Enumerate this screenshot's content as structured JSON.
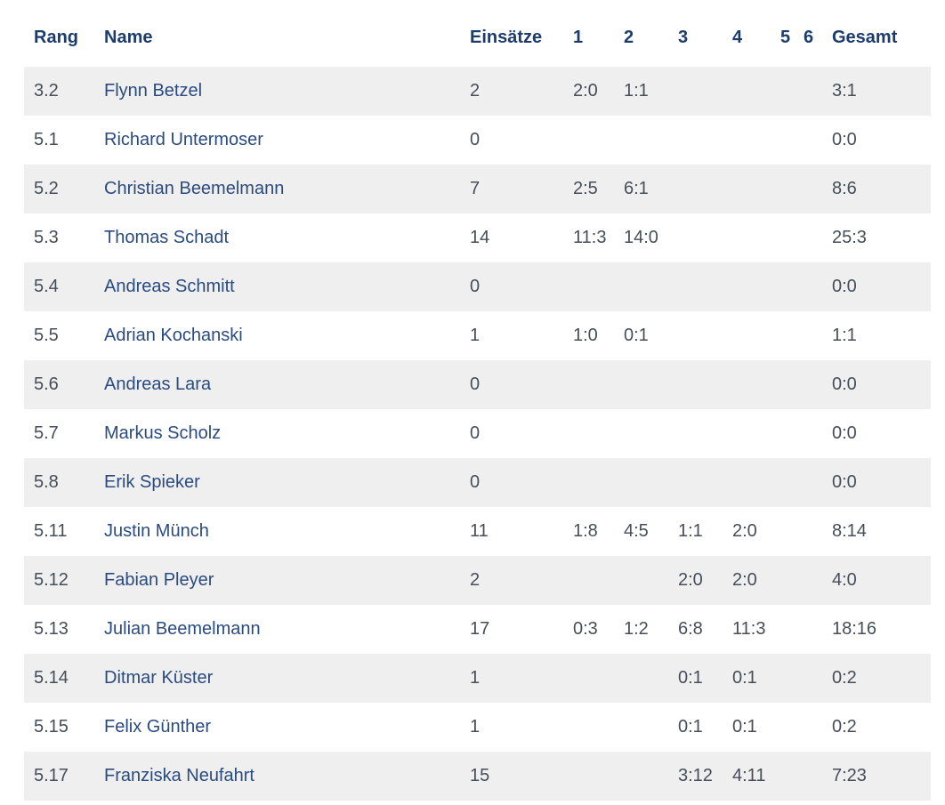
{
  "table": {
    "headers": [
      "Rang",
      "Name",
      "Einsätze",
      "1",
      "2",
      "3",
      "4",
      "5",
      "6",
      "Gesamt"
    ],
    "rows": [
      {
        "rang": "3.2",
        "name": "Flynn Betzel",
        "einsaetze": "2",
        "r1": "2:0",
        "r2": "1:1",
        "r3": "",
        "r4": "",
        "r5": "",
        "r6": "",
        "gesamt": "3:1"
      },
      {
        "rang": "5.1",
        "name": "Richard Untermoser",
        "einsaetze": "0",
        "r1": "",
        "r2": "",
        "r3": "",
        "r4": "",
        "r5": "",
        "r6": "",
        "gesamt": "0:0"
      },
      {
        "rang": "5.2",
        "name": "Christian Beemelmann",
        "einsaetze": "7",
        "r1": "2:5",
        "r2": "6:1",
        "r3": "",
        "r4": "",
        "r5": "",
        "r6": "",
        "gesamt": "8:6"
      },
      {
        "rang": "5.3",
        "name": "Thomas Schadt",
        "einsaetze": "14",
        "r1": "11:3",
        "r2": "14:0",
        "r3": "",
        "r4": "",
        "r5": "",
        "r6": "",
        "gesamt": "25:3"
      },
      {
        "rang": "5.4",
        "name": "Andreas Schmitt",
        "einsaetze": "0",
        "r1": "",
        "r2": "",
        "r3": "",
        "r4": "",
        "r5": "",
        "r6": "",
        "gesamt": "0:0"
      },
      {
        "rang": "5.5",
        "name": "Adrian Kochanski",
        "einsaetze": "1",
        "r1": "1:0",
        "r2": "0:1",
        "r3": "",
        "r4": "",
        "r5": "",
        "r6": "",
        "gesamt": "1:1"
      },
      {
        "rang": "5.6",
        "name": "Andreas Lara",
        "einsaetze": "0",
        "r1": "",
        "r2": "",
        "r3": "",
        "r4": "",
        "r5": "",
        "r6": "",
        "gesamt": "0:0"
      },
      {
        "rang": "5.7",
        "name": "Markus Scholz",
        "einsaetze": "0",
        "r1": "",
        "r2": "",
        "r3": "",
        "r4": "",
        "r5": "",
        "r6": "",
        "gesamt": "0:0"
      },
      {
        "rang": "5.8",
        "name": "Erik Spieker",
        "einsaetze": "0",
        "r1": "",
        "r2": "",
        "r3": "",
        "r4": "",
        "r5": "",
        "r6": "",
        "gesamt": "0:0"
      },
      {
        "rang": "5.11",
        "name": "Justin Münch",
        "einsaetze": "11",
        "r1": "1:8",
        "r2": "4:5",
        "r3": "1:1",
        "r4": "2:0",
        "r5": "",
        "r6": "",
        "gesamt": "8:14"
      },
      {
        "rang": "5.12",
        "name": "Fabian Pleyer",
        "einsaetze": "2",
        "r1": "",
        "r2": "",
        "r3": "2:0",
        "r4": "2:0",
        "r5": "",
        "r6": "",
        "gesamt": "4:0"
      },
      {
        "rang": "5.13",
        "name": "Julian Beemelmann",
        "einsaetze": "17",
        "r1": "0:3",
        "r2": "1:2",
        "r3": "6:8",
        "r4": "11:3",
        "r5": "",
        "r6": "",
        "gesamt": "18:16"
      },
      {
        "rang": "5.14",
        "name": "Ditmar Küster",
        "einsaetze": "1",
        "r1": "",
        "r2": "",
        "r3": "0:1",
        "r4": "0:1",
        "r5": "",
        "r6": "",
        "gesamt": "0:2"
      },
      {
        "rang": "5.15",
        "name": "Felix Günther",
        "einsaetze": "1",
        "r1": "",
        "r2": "",
        "r3": "0:1",
        "r4": "0:1",
        "r5": "",
        "r6": "",
        "gesamt": "0:2"
      },
      {
        "rang": "5.17",
        "name": "Franziska Neufahrt",
        "einsaetze": "15",
        "r1": "",
        "r2": "",
        "r3": "3:12",
        "r4": "4:11",
        "r5": "",
        "r6": "",
        "gesamt": "7:23"
      }
    ]
  },
  "theme": {
    "header_text_color": "#1d3c6e",
    "name_link_color": "#2a4b80",
    "cell_text_color": "#464e58",
    "stripe_color": "#efefef",
    "page_bg": "#ffffff"
  }
}
